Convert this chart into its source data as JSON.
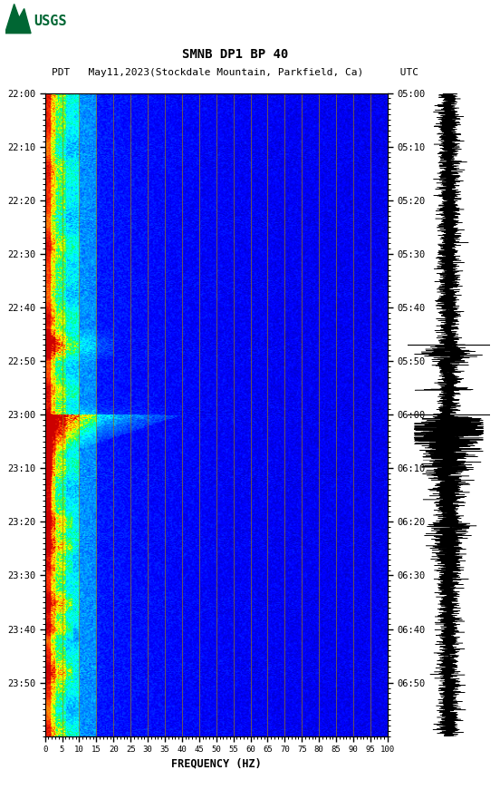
{
  "title_line1": "SMNB DP1 BP 40",
  "title_line2": "PDT   May11,2023(Stockdale Mountain, Parkfield, Ca)      UTC",
  "xlabel": "FREQUENCY (HZ)",
  "freq_ticks": [
    0,
    5,
    10,
    15,
    20,
    25,
    30,
    35,
    40,
    45,
    50,
    55,
    60,
    65,
    70,
    75,
    80,
    85,
    90,
    95,
    100
  ],
  "freq_grid_lines": [
    5,
    10,
    15,
    20,
    25,
    30,
    35,
    40,
    45,
    50,
    55,
    60,
    65,
    70,
    75,
    80,
    85,
    90,
    95,
    100
  ],
  "time_labels_left": [
    "22:00",
    "22:10",
    "22:20",
    "22:30",
    "22:40",
    "22:50",
    "23:00",
    "23:10",
    "23:20",
    "23:30",
    "23:40",
    "23:50"
  ],
  "time_labels_right": [
    "05:00",
    "05:10",
    "05:20",
    "05:30",
    "05:40",
    "05:50",
    "06:00",
    "06:10",
    "06:20",
    "06:30",
    "06:40",
    "06:50"
  ],
  "freq_min": 0,
  "freq_max": 100,
  "background_color": "#ffffff",
  "usgs_logo_color": "#006633",
  "fig_width": 5.52,
  "fig_height": 8.92
}
